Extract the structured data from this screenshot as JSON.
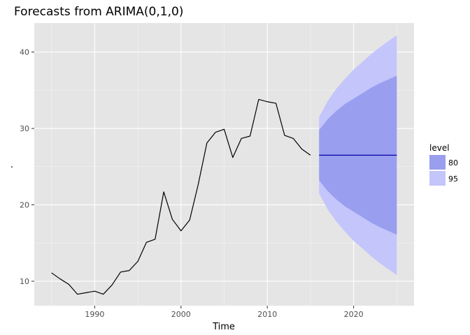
{
  "chart_data": {
    "type": "line",
    "title": "Forecasts from ARIMA(0,1,0)",
    "xlabel": "Time",
    "ylabel": ".",
    "xlim": [
      1983,
      2027
    ],
    "ylim": [
      6.8,
      43.8
    ],
    "x_ticks": [
      1990,
      2000,
      2010,
      2020
    ],
    "y_ticks": [
      10,
      20,
      30,
      40
    ],
    "grid": true,
    "legend_position": "right",
    "colors": {
      "panel_background": "#e5e5e5",
      "grid_major": "#ffffff",
      "history_line": "#000000",
      "forecast_line": "#0000aa",
      "band_80": "#9a9eee",
      "band_95": "#c3c5fb"
    },
    "legend": {
      "title": "level",
      "entries": [
        {
          "label": "80",
          "color": "#9a9eee"
        },
        {
          "label": "95",
          "color": "#c3c5fb"
        }
      ]
    },
    "series": [
      {
        "kind": "history",
        "x": [
          1985,
          1986,
          1987,
          1988,
          1989,
          1990,
          1991,
          1992,
          1993,
          1994,
          1995,
          1996,
          1997,
          1998,
          1999,
          2000,
          2001,
          2002,
          2003,
          2004,
          2005,
          2006,
          2007,
          2008,
          2009,
          2010,
          2011,
          2012,
          2013,
          2014,
          2015
        ],
        "y": [
          11.1,
          10.3,
          9.6,
          8.3,
          8.5,
          8.7,
          8.3,
          9.5,
          11.2,
          11.4,
          12.6,
          15.1,
          15.5,
          21.7,
          18.1,
          16.6,
          18.0,
          22.7,
          28.1,
          29.5,
          29.9,
          26.2,
          28.7,
          29.0,
          33.8,
          33.5,
          33.3,
          29.1,
          28.7,
          27.3,
          26.5
        ]
      },
      {
        "kind": "forecast",
        "x": [
          2016,
          2017,
          2018,
          2019,
          2020,
          2021,
          2022,
          2023,
          2024,
          2025
        ],
        "mean": [
          26.5,
          26.5,
          26.5,
          26.5,
          26.5,
          26.5,
          26.5,
          26.5,
          26.5,
          26.5
        ],
        "lo80": [
          23.2,
          21.8,
          20.7,
          19.8,
          19.1,
          18.4,
          17.7,
          17.1,
          16.6,
          16.1
        ],
        "hi80": [
          29.8,
          31.2,
          32.3,
          33.2,
          33.9,
          34.6,
          35.3,
          35.9,
          36.4,
          36.9
        ],
        "lo95": [
          21.5,
          19.4,
          17.8,
          16.5,
          15.3,
          14.3,
          13.3,
          12.4,
          11.6,
          10.8
        ],
        "hi95": [
          31.5,
          33.6,
          35.2,
          36.5,
          37.7,
          38.7,
          39.7,
          40.6,
          41.4,
          42.2
        ]
      }
    ]
  }
}
